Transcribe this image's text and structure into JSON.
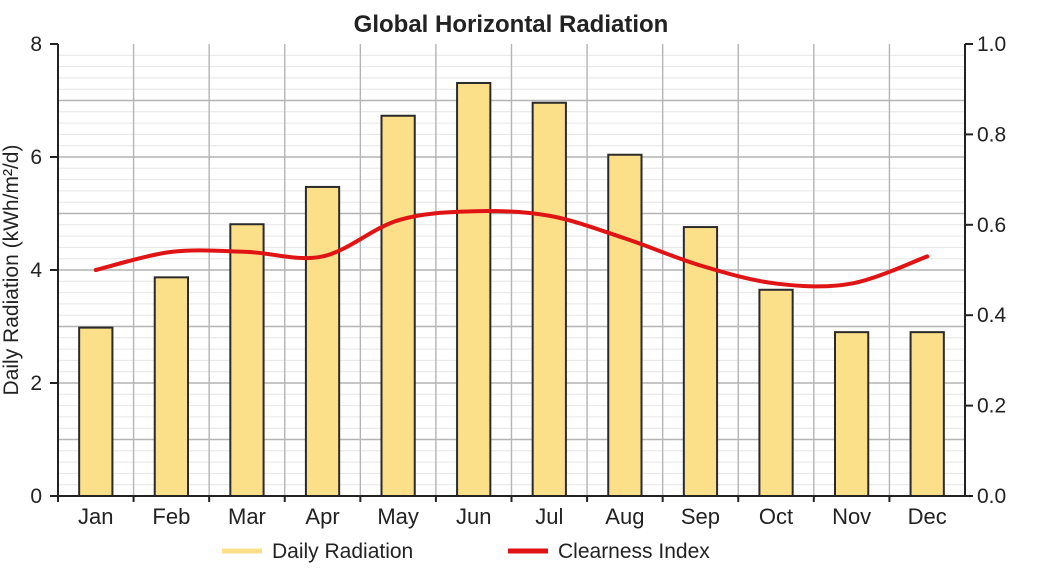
{
  "chart_data": {
    "type": "bar",
    "title": "Global Horizontal Radiation",
    "categories": [
      "Jan",
      "Feb",
      "Mar",
      "Apr",
      "May",
      "Jun",
      "Jul",
      "Aug",
      "Sep",
      "Oct",
      "Nov",
      "Dec"
    ],
    "ylabel": "Daily Radiation (kWh/m²/d)",
    "ylim": [
      0,
      8
    ],
    "yticks": [
      "0",
      "2",
      "4",
      "6",
      "8"
    ],
    "y2lim": [
      0,
      1.0
    ],
    "y2ticks": [
      "0.0",
      "0.2",
      "0.4",
      "0.6",
      "0.8",
      "1.0"
    ],
    "grid": true,
    "legend_position": "bottom",
    "series": [
      {
        "name": "Daily Radiation",
        "type": "bar",
        "axis": "left",
        "color": "#fce089",
        "values": [
          2.98,
          3.87,
          4.81,
          5.47,
          6.73,
          7.31,
          6.96,
          6.04,
          4.76,
          3.65,
          2.9,
          2.9
        ]
      },
      {
        "name": "Clearness Index",
        "type": "line",
        "axis": "right",
        "color": "#e01414",
        "values": [
          0.5,
          0.54,
          0.54,
          0.53,
          0.61,
          0.63,
          0.62,
          0.57,
          0.51,
          0.47,
          0.47,
          0.53
        ]
      }
    ]
  }
}
